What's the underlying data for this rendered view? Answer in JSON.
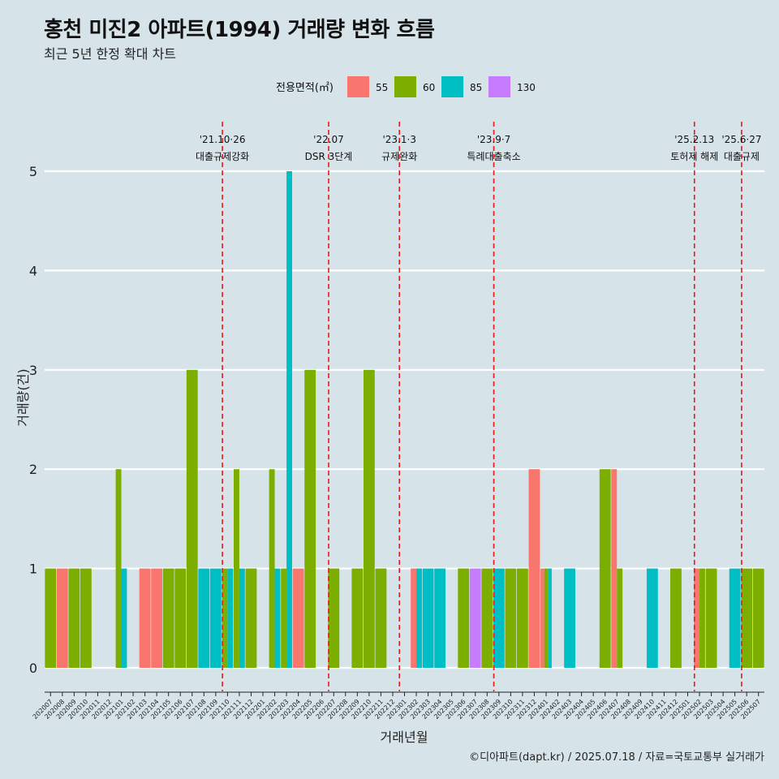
{
  "title": "홍천 미진2 아파트(1994) 거래량 변화 흐름",
  "subtitle": "최근 5년 한정 확대 차트",
  "caption": "©디아파트(dapt.kr) / 2025.07.18 / 자료=국토교통부 실거래가",
  "chart_data": {
    "type": "bar",
    "xlabel": "거래년월",
    "ylabel": "거래량(건)",
    "ylim": [
      0,
      5
    ],
    "yticks": [
      "0",
      "1",
      "2",
      "3",
      "4",
      "5"
    ],
    "grid": "horizontal-major",
    "legend": {
      "title": "전용면적(㎡)",
      "placement": "top",
      "items": [
        {
          "label": "55",
          "color": "#f8766d"
        },
        {
          "label": "60",
          "color": "#7cae00"
        },
        {
          "label": "85",
          "color": "#00bfc4"
        },
        {
          "label": "130",
          "color": "#c77cff"
        }
      ]
    },
    "categories": [
      "202007",
      "202008",
      "202009",
      "202010",
      "202011",
      "202012",
      "202101",
      "202102",
      "202103",
      "202104",
      "202105",
      "202106",
      "202107",
      "202108",
      "202109",
      "202110",
      "202111",
      "202112",
      "202201",
      "202202",
      "202203",
      "202204",
      "202205",
      "202206",
      "202207",
      "202208",
      "202209",
      "202210",
      "202211",
      "202212",
      "202301",
      "202302",
      "202303",
      "202304",
      "202305",
      "202306",
      "202307",
      "202308",
      "202309",
      "202310",
      "202311",
      "202312",
      "202401",
      "202402",
      "202403",
      "202404",
      "202405",
      "202406",
      "202407",
      "202408",
      "202409",
      "202410",
      "202411",
      "202412",
      "202501",
      "202502",
      "202503",
      "202504",
      "202505",
      "202506",
      "202507"
    ],
    "series": [
      {
        "name": "55",
        "values": [
          0,
          1,
          0,
          0,
          0,
          0,
          0,
          0,
          1,
          1,
          0,
          0,
          0,
          0,
          0,
          0,
          0,
          0,
          0,
          0,
          0,
          1,
          0,
          0,
          0,
          0,
          0,
          0,
          0,
          0,
          0,
          1,
          0,
          0,
          0,
          0,
          0,
          0,
          0,
          0,
          0,
          2,
          1,
          0,
          0,
          0,
          0,
          0,
          2,
          0,
          0,
          0,
          0,
          0,
          0,
          1,
          0,
          0,
          0,
          0,
          0
        ]
      },
      {
        "name": "60",
        "values": [
          1,
          0,
          1,
          1,
          0,
          0,
          2,
          0,
          0,
          0,
          1,
          1,
          3,
          0,
          0,
          1,
          2,
          1,
          0,
          2,
          1,
          0,
          3,
          0,
          1,
          0,
          1,
          3,
          1,
          0,
          0,
          0,
          0,
          0,
          0,
          1,
          0,
          1,
          0,
          1,
          1,
          0,
          1,
          0,
          0,
          0,
          0,
          2,
          1,
          0,
          0,
          0,
          0,
          1,
          0,
          1,
          1,
          0,
          0,
          1,
          1
        ]
      },
      {
        "name": "85",
        "values": [
          0,
          0,
          0,
          0,
          0,
          0,
          1,
          0,
          0,
          0,
          0,
          0,
          0,
          1,
          1,
          1,
          1,
          0,
          0,
          1,
          5,
          0,
          0,
          0,
          0,
          0,
          0,
          0,
          0,
          0,
          0,
          1,
          1,
          1,
          0,
          0,
          0,
          0,
          1,
          0,
          0,
          0,
          1,
          0,
          1,
          0,
          0,
          0,
          0,
          0,
          0,
          1,
          0,
          0,
          0,
          0,
          0,
          0,
          1,
          0,
          0
        ]
      },
      {
        "name": "130",
        "values": [
          0,
          0,
          0,
          0,
          0,
          0,
          0,
          0,
          0,
          0,
          0,
          0,
          0,
          0,
          0,
          0,
          0,
          0,
          0,
          0,
          0,
          0,
          0,
          0,
          0,
          0,
          0,
          0,
          0,
          0,
          0,
          0,
          0,
          0,
          0,
          0,
          1,
          0,
          0,
          0,
          0,
          0,
          0,
          0,
          0,
          0,
          0,
          0,
          0,
          0,
          0,
          0,
          0,
          0,
          0,
          0,
          0,
          0,
          0,
          0,
          0
        ]
      }
    ],
    "annotations": [
      {
        "at": "202110",
        "date": "'21.10·26",
        "label": "대출규제강화"
      },
      {
        "at": "202207",
        "date": "'22.07",
        "label": "DSR 3단계"
      },
      {
        "at": "202301",
        "date": "'23.1·3",
        "label": "규제완화"
      },
      {
        "at": "202309",
        "date": "'23.9·7",
        "label": "특례대출축소"
      },
      {
        "at": "202502",
        "date": "'25.2.13",
        "label": "토허제 해제"
      },
      {
        "at": "202506",
        "date": "'25.6·27",
        "label": "대출규제"
      }
    ]
  }
}
